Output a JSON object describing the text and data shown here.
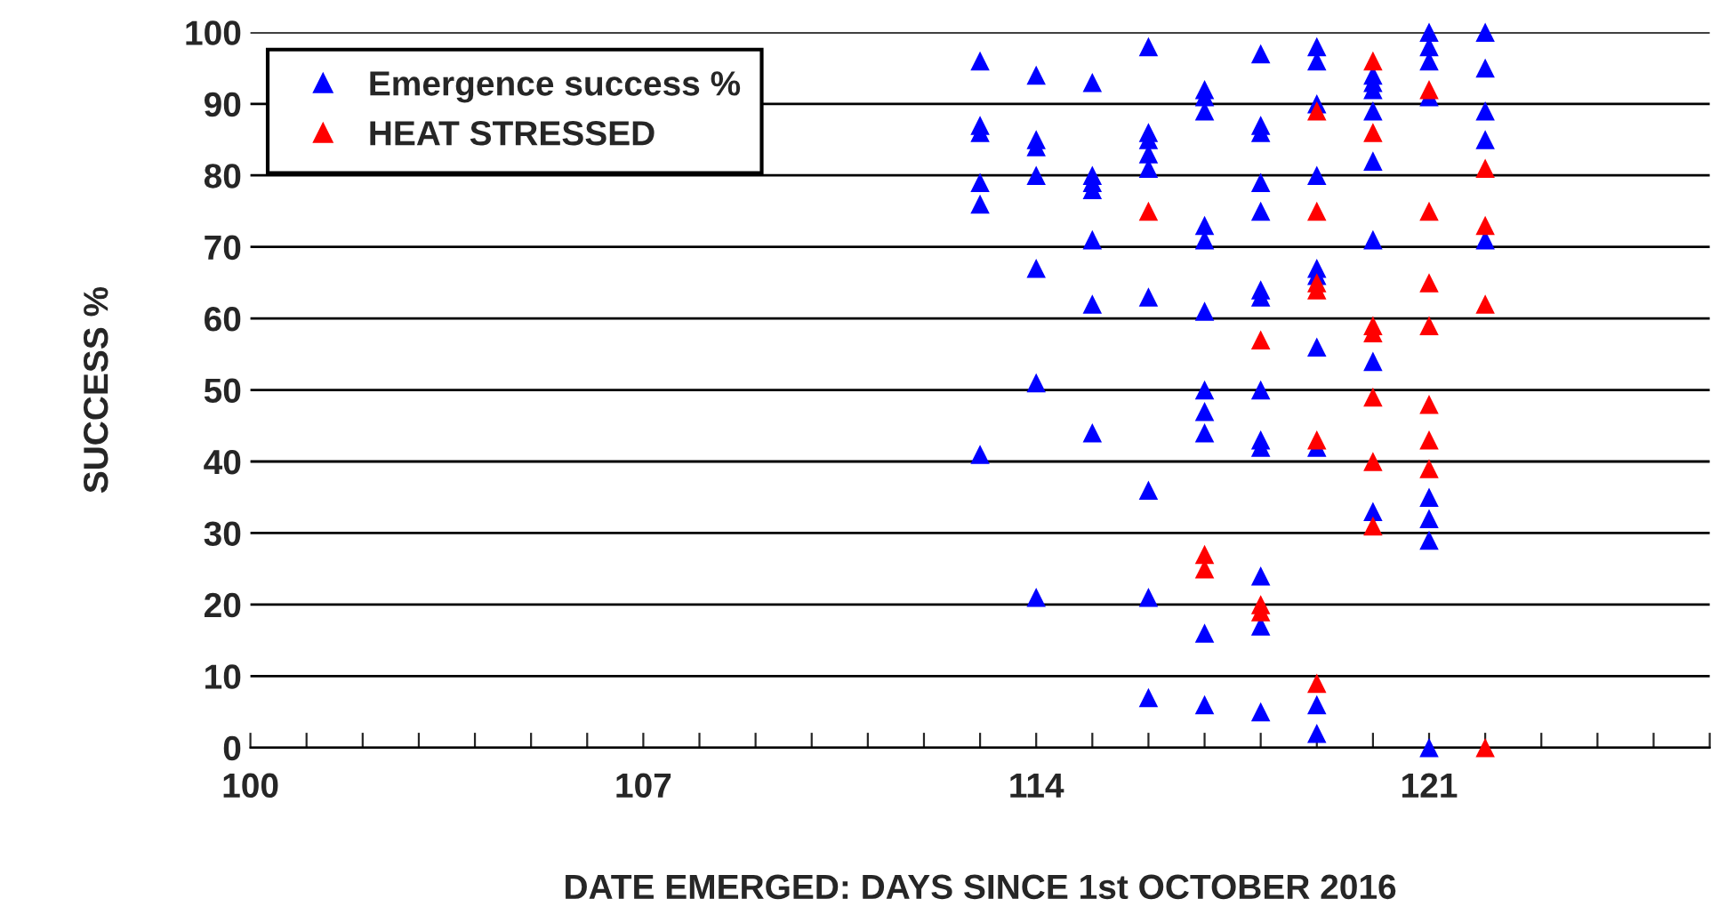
{
  "chart_data": {
    "type": "scatter",
    "xlabel": "DATE EMERGED: DAYS SINCE 1st OCTOBER 2016",
    "ylabel": "SUCCESS %",
    "xlim": [
      100,
      126
    ],
    "ylim": [
      0,
      100
    ],
    "xticks": [
      100,
      {
        "value": 101,
        "label": null
      },
      {
        "value": 102,
        "label": null
      },
      {
        "value": 103,
        "label": null
      },
      {
        "value": 104,
        "label": null
      },
      {
        "value": 105,
        "label": null
      },
      {
        "value": 106,
        "label": null
      },
      107,
      {
        "value": 108,
        "label": null
      },
      {
        "value": 109,
        "label": null
      },
      {
        "value": 110,
        "label": null
      },
      {
        "value": 111,
        "label": null
      },
      {
        "value": 112,
        "label": null
      },
      {
        "value": 113,
        "label": null
      },
      114,
      {
        "value": 115,
        "label": null
      },
      {
        "value": 116,
        "label": null
      },
      {
        "value": 117,
        "label": null
      },
      {
        "value": 118,
        "label": null
      },
      {
        "value": 119,
        "label": null
      },
      {
        "value": 120,
        "label": null
      },
      121,
      {
        "value": 122,
        "label": null
      },
      {
        "value": 123,
        "label": null
      },
      {
        "value": 124,
        "label": null
      },
      {
        "value": 125,
        "label": null
      },
      {
        "value": 126,
        "label": null
      }
    ],
    "yticks": [
      0,
      10,
      20,
      30,
      40,
      50,
      60,
      70,
      80,
      90,
      100
    ],
    "grid": "y",
    "legend": "top left",
    "marker": "triangle",
    "series": [
      {
        "name": "Emergence success %",
        "color": "#0000ff",
        "x": [
          113,
          113,
          113,
          113,
          113,
          113,
          114,
          114,
          114,
          114,
          114,
          114,
          114,
          115,
          115,
          115,
          115,
          115,
          115,
          115,
          116,
          116,
          116,
          116,
          116,
          116,
          116,
          116,
          116,
          117,
          117,
          117,
          117,
          117,
          117,
          117,
          117,
          117,
          117,
          117,
          118,
          118,
          118,
          118,
          118,
          118,
          118,
          118,
          118,
          118,
          118,
          118,
          118,
          119,
          119,
          119,
          119,
          119,
          119,
          119,
          119,
          119,
          119,
          120,
          120,
          120,
          120,
          120,
          120,
          120,
          120,
          121,
          121,
          121,
          121,
          121,
          121,
          121,
          121,
          122,
          122,
          122,
          122,
          122
        ],
        "values": [
          96,
          87,
          86,
          79,
          76,
          41,
          94,
          85,
          84,
          80,
          67,
          51,
          21,
          93,
          80,
          79,
          78,
          71,
          62,
          44,
          98,
          86,
          85,
          83,
          81,
          63,
          36,
          21,
          7,
          92,
          91,
          89,
          73,
          71,
          61,
          50,
          47,
          44,
          16,
          6,
          97,
          87,
          86,
          79,
          75,
          64,
          63,
          50,
          43,
          42,
          24,
          17,
          5,
          98,
          96,
          90,
          80,
          67,
          66,
          56,
          42,
          6,
          2,
          94,
          93,
          92,
          89,
          82,
          71,
          54,
          33,
          100,
          98,
          96,
          91,
          35,
          32,
          29,
          0,
          100,
          95,
          89,
          85,
          71
        ]
      },
      {
        "name": "HEAT STRESSED",
        "color": "#ff0000",
        "x": [
          116,
          117,
          117,
          118,
          118,
          118,
          119,
          119,
          119,
          119,
          119,
          119,
          120,
          120,
          120,
          120,
          120,
          120,
          120,
          121,
          121,
          121,
          121,
          121,
          121,
          121,
          122,
          122,
          122,
          122
        ],
        "values": [
          75,
          27,
          25,
          57,
          20,
          19,
          89,
          75,
          65,
          64,
          43,
          9,
          96,
          86,
          59,
          58,
          49,
          40,
          31,
          92,
          75,
          65,
          59,
          48,
          43,
          39,
          81,
          73,
          62,
          0
        ]
      }
    ]
  }
}
